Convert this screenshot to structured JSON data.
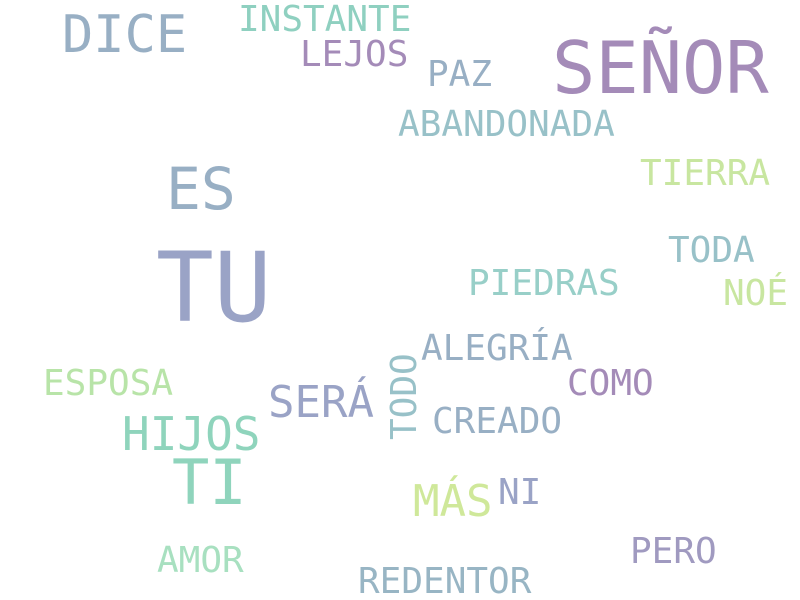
{
  "words": [
    {
      "key": "tu",
      "text": "TU",
      "color": "#9aa3c6"
    },
    {
      "key": "senor",
      "text": "SEÑOR",
      "color": "#a48bb8"
    },
    {
      "key": "ti",
      "text": "TI",
      "color": "#8fd4bc"
    },
    {
      "key": "dice",
      "text": "DICE",
      "color": "#98afc4"
    },
    {
      "key": "es",
      "text": "ES",
      "color": "#98afc4"
    },
    {
      "key": "instante",
      "text": "INSTANTE",
      "color": "#8fd0c0"
    },
    {
      "key": "lejos",
      "text": "LEJOS",
      "color": "#a48bb8"
    },
    {
      "key": "paz",
      "text": "PAZ",
      "color": "#98afc4"
    },
    {
      "key": "abandonada",
      "text": "ABANDONADA",
      "color": "#98c1c8"
    },
    {
      "key": "tierra",
      "text": "TIERRA",
      "color": "#c8e6a0"
    },
    {
      "key": "toda",
      "text": "TODA",
      "color": "#98c1c8"
    },
    {
      "key": "noe",
      "text": "NOÉ",
      "color": "#c8e6a0"
    },
    {
      "key": "piedras",
      "text": "PIEDRAS",
      "color": "#98cfc8"
    },
    {
      "key": "alegria",
      "text": "ALEGRÍA",
      "color": "#98afc4"
    },
    {
      "key": "todo",
      "text": "TODO",
      "color": "#98c1c8"
    },
    {
      "key": "esposa",
      "text": "ESPOSA",
      "color": "#b8e4a8"
    },
    {
      "key": "sera",
      "text": "SERÁ",
      "color": "#9aa3c6"
    },
    {
      "key": "como",
      "text": "COMO",
      "color": "#a48bb8"
    },
    {
      "key": "hijos",
      "text": "HIJOS",
      "color": "#8fd4bc"
    },
    {
      "key": "creado",
      "text": "CREADO",
      "color": "#98afc4"
    },
    {
      "key": "mas",
      "text": "MÁS",
      "color": "#cfe89a"
    },
    {
      "key": "ni",
      "text": "NI",
      "color": "#9aa3c6"
    },
    {
      "key": "amor",
      "text": "AMOR",
      "color": "#a8e0c0"
    },
    {
      "key": "pero",
      "text": "PERO",
      "color": "#a09ac0"
    },
    {
      "key": "redentor",
      "text": "REDENTOR",
      "color": "#98b5c4"
    }
  ]
}
